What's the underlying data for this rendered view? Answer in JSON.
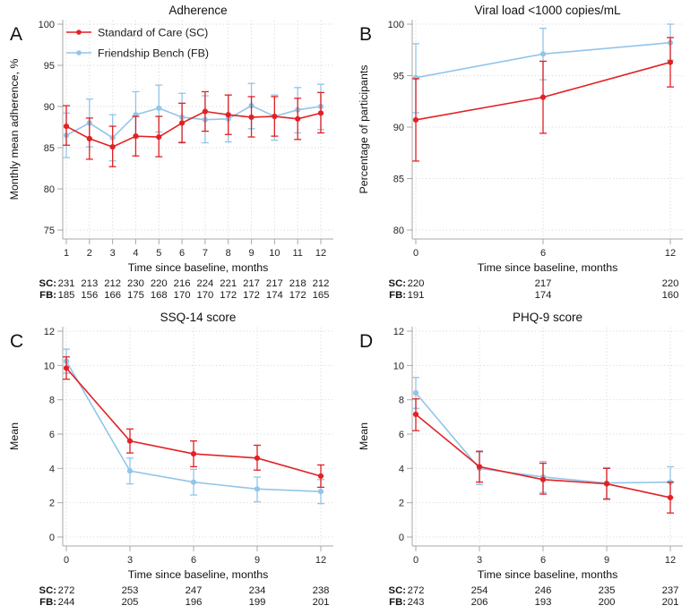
{
  "figure": {
    "title": "Four-panel trial outcomes figure",
    "colors": {
      "sc": "#e22124",
      "fb": "#92c5e8",
      "grid": "#d2d2d2",
      "axis": "#a9a9a9",
      "text": "#1a1a1a"
    },
    "legend": {
      "position": "top-left-inside-panel-A",
      "items": [
        {
          "label": "Standard of Care (SC)",
          "color": "#e22124"
        },
        {
          "label": "Friendship Bench (FB)",
          "color": "#92c5e8"
        }
      ]
    }
  },
  "chart_data": [
    {
      "type": "line",
      "panel_label": "A",
      "title": "Adherence",
      "xlabel": "Time since baseline, months",
      "ylabel": "Monthly mean adherence, %",
      "x": [
        1,
        2,
        3,
        4,
        5,
        6,
        7,
        8,
        9,
        10,
        11,
        12
      ],
      "ylim": [
        75,
        100
      ],
      "yticks": [
        75,
        80,
        85,
        90,
        95,
        100
      ],
      "grid": true,
      "show_legend": true,
      "series": [
        {
          "name": "Standard of Care (SC)",
          "key": "SC",
          "color": "#e22124",
          "values": [
            87.6,
            86.1,
            85.1,
            86.4,
            86.3,
            88.0,
            89.4,
            89.0,
            88.7,
            88.8,
            88.5,
            89.2
          ],
          "ci_low": [
            85.3,
            83.6,
            82.7,
            84.0,
            83.9,
            85.6,
            87.0,
            86.6,
            86.3,
            86.4,
            86.0,
            86.8
          ],
          "ci_high": [
            90.1,
            88.6,
            87.6,
            88.8,
            88.8,
            90.4,
            91.8,
            91.4,
            91.2,
            91.2,
            91.0,
            91.7
          ]
        },
        {
          "name": "Friendship Bench (FB)",
          "key": "FB",
          "color": "#92c5e8",
          "values": [
            86.5,
            88.0,
            86.2,
            89.0,
            89.8,
            88.7,
            88.4,
            88.5,
            90.1,
            88.8,
            89.6,
            90.0
          ],
          "ci_low": [
            83.8,
            85.1,
            83.4,
            86.2,
            86.9,
            85.7,
            85.6,
            85.7,
            87.3,
            85.9,
            86.8,
            87.2
          ],
          "ci_high": [
            89.2,
            90.9,
            89.0,
            91.8,
            92.6,
            91.6,
            91.3,
            91.4,
            92.8,
            91.4,
            92.3,
            92.7
          ]
        }
      ],
      "n_table": [
        {
          "label": "SC:",
          "values": [
            231,
            213,
            212,
            230,
            220,
            216,
            224,
            221,
            217,
            217,
            218,
            212
          ]
        },
        {
          "label": "FB:",
          "values": [
            185,
            156,
            166,
            175,
            168,
            170,
            170,
            172,
            172,
            174,
            172,
            165
          ]
        }
      ]
    },
    {
      "type": "line",
      "panel_label": "B",
      "title": "Viral load <1000 copies/mL",
      "xlabel": "Time since baseline, months",
      "ylabel": "Percentage of participants",
      "x": [
        0,
        6,
        12
      ],
      "ylim": [
        80,
        100
      ],
      "yticks": [
        80,
        85,
        90,
        95,
        100
      ],
      "grid": true,
      "show_legend": false,
      "series": [
        {
          "name": "Standard of Care (SC)",
          "key": "SC",
          "color": "#e22124",
          "values": [
            90.7,
            92.9,
            96.3
          ],
          "ci_low": [
            86.7,
            89.4,
            93.9
          ],
          "ci_high": [
            94.7,
            96.4,
            98.7
          ]
        },
        {
          "name": "Friendship Bench (FB)",
          "key": "FB",
          "color": "#92c5e8",
          "values": [
            94.8,
            97.1,
            98.2
          ],
          "ci_low": [
            91.4,
            94.6,
            96.5
          ],
          "ci_high": [
            98.1,
            99.6,
            100.0
          ]
        }
      ],
      "n_table": [
        {
          "label": "SC:",
          "values": [
            220,
            217,
            220
          ]
        },
        {
          "label": "FB:",
          "values": [
            191,
            174,
            160
          ]
        }
      ]
    },
    {
      "type": "line",
      "panel_label": "C",
      "title": "SSQ-14 score",
      "xlabel": "Time since baseline, months",
      "ylabel": "Mean",
      "x": [
        0,
        3,
        6,
        9,
        12
      ],
      "ylim": [
        0,
        12
      ],
      "yticks": [
        0,
        2,
        4,
        6,
        8,
        10,
        12
      ],
      "grid": true,
      "show_legend": false,
      "series": [
        {
          "name": "Standard of Care (SC)",
          "key": "SC",
          "color": "#e22124",
          "values": [
            9.85,
            5.6,
            4.85,
            4.6,
            3.55
          ],
          "ci_low": [
            9.2,
            4.9,
            4.1,
            3.9,
            2.9
          ],
          "ci_high": [
            10.5,
            6.3,
            5.6,
            5.35,
            4.2
          ]
        },
        {
          "name": "Friendship Bench (FB)",
          "key": "FB",
          "color": "#92c5e8",
          "values": [
            10.25,
            3.85,
            3.2,
            2.8,
            2.65
          ],
          "ci_low": [
            9.55,
            3.1,
            2.45,
            2.05,
            1.95
          ],
          "ci_high": [
            10.95,
            4.6,
            3.95,
            3.5,
            3.35
          ]
        }
      ],
      "n_table": [
        {
          "label": "SC:",
          "values": [
            272,
            253,
            247,
            234,
            238
          ]
        },
        {
          "label": "FB:",
          "values": [
            244,
            205,
            196,
            199,
            201
          ]
        }
      ]
    },
    {
      "type": "line",
      "panel_label": "D",
      "title": "PHQ-9 score",
      "xlabel": "Time since baseline, months",
      "ylabel": "Mean",
      "x": [
        0,
        3,
        6,
        9,
        12
      ],
      "ylim": [
        0,
        12
      ],
      "yticks": [
        0,
        2,
        4,
        6,
        8,
        10,
        12
      ],
      "grid": true,
      "show_legend": false,
      "series": [
        {
          "name": "Standard of Care (SC)",
          "key": "SC",
          "color": "#e22124",
          "values": [
            7.15,
            4.1,
            3.35,
            3.1,
            2.3
          ],
          "ci_low": [
            6.2,
            3.2,
            2.5,
            2.2,
            1.4
          ],
          "ci_high": [
            8.05,
            5.0,
            4.3,
            4.0,
            3.2
          ]
        },
        {
          "name": "Friendship Bench (FB)",
          "key": "FB",
          "color": "#92c5e8",
          "values": [
            8.4,
            4.0,
            3.5,
            3.15,
            3.2
          ],
          "ci_low": [
            7.5,
            3.05,
            2.6,
            2.25,
            2.3
          ],
          "ci_high": [
            9.3,
            4.95,
            4.4,
            4.05,
            4.1
          ]
        }
      ],
      "n_table": [
        {
          "label": "SC:",
          "values": [
            272,
            254,
            246,
            235,
            237
          ]
        },
        {
          "label": "FB:",
          "values": [
            243,
            206,
            193,
            200,
            201
          ]
        }
      ]
    }
  ]
}
